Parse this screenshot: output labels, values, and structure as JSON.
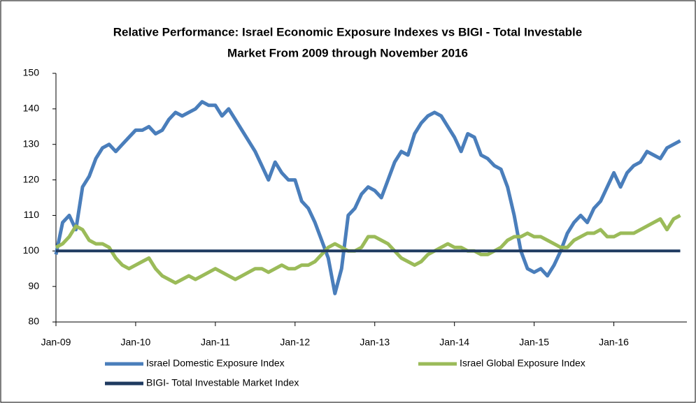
{
  "chart_data": {
    "type": "line",
    "title": [
      "Relative Performance: Israel Economic Exposure Indexes vs BIGI - Total Investable",
      "Market From 2009 through November 2016"
    ],
    "categories": [
      "Jan-09",
      null,
      null,
      null,
      null,
      null,
      null,
      null,
      null,
      null,
      null,
      null,
      "Jan-10",
      null,
      null,
      null,
      null,
      null,
      null,
      null,
      null,
      null,
      null,
      null,
      "Jan-11",
      null,
      null,
      null,
      null,
      null,
      null,
      null,
      null,
      null,
      null,
      null,
      "Jan-12",
      null,
      null,
      null,
      null,
      null,
      null,
      null,
      null,
      null,
      null,
      null,
      "Jan-13",
      null,
      null,
      null,
      null,
      null,
      null,
      null,
      null,
      null,
      null,
      null,
      "Jan-14",
      null,
      null,
      null,
      null,
      null,
      null,
      null,
      null,
      null,
      null,
      null,
      "Jan-15",
      null,
      null,
      null,
      null,
      null,
      null,
      null,
      null,
      null,
      null,
      null,
      "Jan-16",
      null,
      null,
      null,
      null,
      null,
      null,
      null,
      null,
      null,
      null
    ],
    "series": [
      {
        "name": "Israel Domestic Exposure Index",
        "color": "#4a7ebb",
        "values": [
          99,
          108,
          110,
          106,
          118,
          121,
          126,
          129,
          130,
          128,
          130,
          132,
          134,
          134,
          135,
          133,
          134,
          137,
          139,
          138,
          139,
          140,
          142,
          141,
          141,
          138,
          140,
          137,
          134,
          131,
          128,
          124,
          120,
          125,
          122,
          120,
          120,
          114,
          112,
          108,
          103,
          98,
          88,
          95,
          110,
          112,
          116,
          118,
          117,
          115,
          120,
          125,
          128,
          127,
          133,
          136,
          138,
          139,
          138,
          135,
          132,
          128,
          133,
          132,
          127,
          126,
          124,
          123,
          118,
          110,
          100,
          95,
          94,
          95,
          93,
          96,
          100,
          105,
          108,
          110,
          108,
          112,
          114,
          118,
          122,
          118,
          122,
          124,
          125,
          128,
          127,
          126,
          129,
          130,
          131
        ]
      },
      {
        "name": "Israel Global Exposure Index",
        "color": "#9bbb59",
        "values": [
          101,
          102,
          104,
          107,
          106,
          103,
          102,
          102,
          101,
          98,
          96,
          95,
          96,
          97,
          98,
          95,
          93,
          92,
          91,
          92,
          93,
          92,
          93,
          94,
          95,
          94,
          93,
          92,
          93,
          94,
          95,
          95,
          94,
          95,
          96,
          95,
          95,
          96,
          96,
          97,
          99,
          101,
          102,
          101,
          100,
          100,
          101,
          104,
          104,
          103,
          102,
          100,
          98,
          97,
          96,
          97,
          99,
          100,
          101,
          102,
          101,
          101,
          100,
          100,
          99,
          99,
          100,
          101,
          103,
          104,
          104,
          105,
          104,
          104,
          103,
          102,
          101,
          101,
          103,
          104,
          105,
          105,
          106,
          104,
          104,
          105,
          105,
          105,
          106,
          107,
          108,
          109,
          106,
          109,
          110
        ]
      },
      {
        "name": "BIGI- Total Investable Market Index",
        "color": "#1f3a60",
        "values": [
          100,
          100,
          100,
          100,
          100,
          100,
          100,
          100,
          100,
          100,
          100,
          100,
          100,
          100,
          100,
          100,
          100,
          100,
          100,
          100,
          100,
          100,
          100,
          100,
          100,
          100,
          100,
          100,
          100,
          100,
          100,
          100,
          100,
          100,
          100,
          100,
          100,
          100,
          100,
          100,
          100,
          100,
          100,
          100,
          100,
          100,
          100,
          100,
          100,
          100,
          100,
          100,
          100,
          100,
          100,
          100,
          100,
          100,
          100,
          100,
          100,
          100,
          100,
          100,
          100,
          100,
          100,
          100,
          100,
          100,
          100,
          100,
          100,
          100,
          100,
          100,
          100,
          100,
          100,
          100,
          100,
          100,
          100,
          100,
          100,
          100,
          100,
          100,
          100,
          100,
          100,
          100,
          100,
          100,
          100
        ]
      }
    ],
    "ylim": [
      80,
      150
    ],
    "yticks": [
      80,
      90,
      100,
      110,
      120,
      130,
      140,
      150
    ],
    "grid": false
  }
}
